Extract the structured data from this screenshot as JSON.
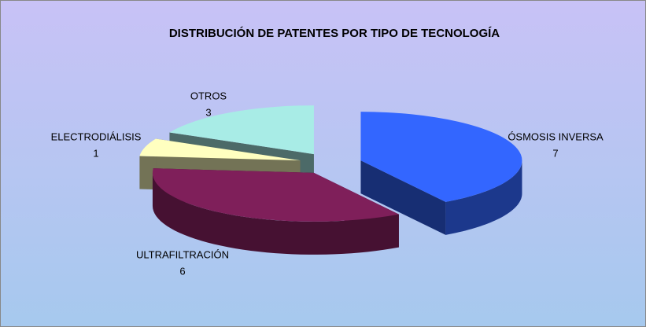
{
  "chart_data": {
    "type": "pie",
    "title": "DISTRIBUCIÓN DE PATENTES POR TIPO DE TECNOLOGÍA",
    "categories": [
      "ÓSMOSIS INVERSA",
      "ULTRAFILTRACIÓN",
      "ELECTRODIÁLISIS",
      "OTROS"
    ],
    "values": [
      7,
      6,
      1,
      3
    ],
    "colors": [
      "#3366ff",
      "#7f1f5a",
      "#ffffc0",
      "#a8ece6"
    ]
  }
}
